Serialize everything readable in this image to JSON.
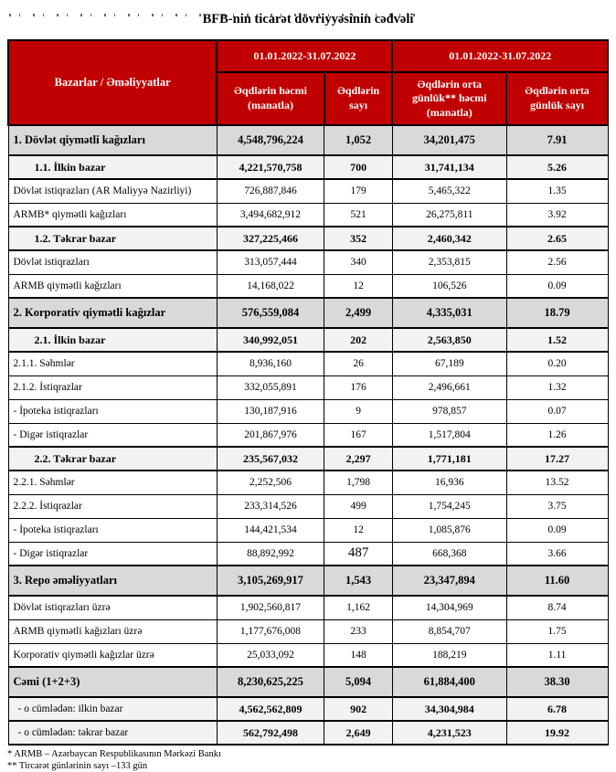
{
  "colors": {
    "header_red": "#C00000",
    "section_gray": "#D9D9D9",
    "subsection_gray": "#F2F2F2"
  },
  "page": {
    "title": "BFB-nin ticarət dövriyyəsinin cədvəli"
  },
  "table": {
    "corner_header": "Bazarlar / Əməliyyatlar",
    "period_headers": [
      "01.01.2022-31.07.2022",
      "01.01.2022-31.07.2022"
    ],
    "column_headers": [
      "Əqdlərin həcmi (manatla)",
      "Əqdlərin sayı",
      "Əqdlərin orta günlük** həcmi (manatla)",
      "Əqdlərin orta günlük sayı"
    ],
    "rows": [
      {
        "style": "section",
        "label": "1. Dövlət qiymətli kağızları",
        "values": [
          "4,548,796,224",
          "1,052",
          "34,201,475",
          "7.91"
        ]
      },
      {
        "style": "subsection",
        "label": "1.1. İlkin bazar",
        "values": [
          "4,221,570,758",
          "700",
          "31,741,134",
          "5.26"
        ]
      },
      {
        "style": "detail",
        "label": "Dövlət istiqrazları (AR Maliyyə Nazirliyi)",
        "values": [
          "726,887,846",
          "179",
          "5,465,322",
          "1.35"
        ]
      },
      {
        "style": "detail",
        "label": "ARMB* qiymətli kağızları",
        "values": [
          "3,494,682,912",
          "521",
          "26,275,811",
          "3.92"
        ]
      },
      {
        "style": "subsection",
        "label": "1.2. Təkrar bazar",
        "values": [
          "327,225,466",
          "352",
          "2,460,342",
          "2.65"
        ]
      },
      {
        "style": "detail",
        "label": "Dövlət istiqrazları",
        "values": [
          "313,057,444",
          "340",
          "2,353,815",
          "2.56"
        ]
      },
      {
        "style": "detail",
        "label": "ARMB qiymətli kağızları",
        "values": [
          "14,168,022",
          "12",
          "106,526",
          "0.09"
        ]
      },
      {
        "style": "section",
        "label": "2. Korporativ qiymətli kağızlar",
        "values": [
          "576,559,084",
          "2,499",
          "4,335,031",
          "18.79"
        ]
      },
      {
        "style": "subsection",
        "label": "2.1. İlkin bazar",
        "values": [
          "340,992,051",
          "202",
          "2,563,850",
          "1.52"
        ]
      },
      {
        "style": "detail",
        "label": "2.1.1. Səhmlər",
        "values": [
          "8,936,160",
          "26",
          "67,189",
          "0.20"
        ]
      },
      {
        "style": "detail",
        "label": "2.1.2. İstiqrazlar",
        "values": [
          "332,055,891",
          "176",
          "2,496,661",
          "1.32"
        ]
      },
      {
        "style": "detail",
        "label": " - İpoteka istiqrazları",
        "values": [
          "130,187,916",
          "9",
          "978,857",
          "0.07"
        ]
      },
      {
        "style": "detail",
        "label": " - Digər istiqrazlar",
        "values": [
          "201,867,976",
          "167",
          "1,517,804",
          "1.26"
        ]
      },
      {
        "style": "subsection",
        "label": "2.2. Təkrar bazar",
        "values": [
          "235,567,032",
          "2,297",
          "1,771,181",
          "17.27"
        ]
      },
      {
        "style": "detail",
        "label": "2.2.1. Səhmlər",
        "values": [
          "2,252,506",
          "1,798",
          "16,936",
          "13.52"
        ]
      },
      {
        "style": "detail",
        "label": "2.2.2. İstiqrazlar",
        "values": [
          "233,314,526",
          "499",
          "1,754,245",
          "3.75"
        ]
      },
      {
        "style": "detail",
        "label": " - İpoteka istiqrazları",
        "values": [
          "144,421,534",
          "12",
          "1,085,876",
          "0.09"
        ]
      },
      {
        "style": "detail",
        "label": " - Digər istiqrazlar",
        "values": [
          "88,892,992",
          "487",
          "668,368",
          "3.66"
        ],
        "large_count": true
      },
      {
        "style": "section",
        "label": "3. Repo əməliyyatları",
        "values": [
          "3,105,269,917",
          "1,543",
          "23,347,894",
          "11.60"
        ]
      },
      {
        "style": "detail",
        "label": "Dövlət istiqrazları üzrə",
        "values": [
          "1,902,560,817",
          "1,162",
          "14,304,969",
          "8.74"
        ]
      },
      {
        "style": "detail",
        "label": "ARMB qiymətli kağızları üzrə",
        "values": [
          "1,177,676,008",
          "233",
          "8,854,707",
          "1.75"
        ]
      },
      {
        "style": "detail",
        "label": "Korporativ qiymətli kağızlar üzrə",
        "values": [
          "25,033,092",
          "148",
          "188,219",
          "1.11"
        ]
      },
      {
        "style": "section",
        "label": "Cəmi (1+2+3)",
        "values": [
          "8,230,625,225",
          "5,094",
          "61,884,400",
          "38.30"
        ]
      },
      {
        "style": "totalsub",
        "label": " - o cümlədən: ilkin bazar",
        "values": [
          "4,562,562,809",
          "902",
          "34,304,984",
          "6.78"
        ]
      },
      {
        "style": "totalsub",
        "label": " - o cümlədən: təkrar bazar",
        "values": [
          "562,792,498",
          "2,649",
          "4,231,523",
          "19.92"
        ]
      }
    ]
  },
  "footnotes": [
    "* ARMB – Azərbaycan Respublikasının Mərkəzi Bankı",
    "** Tircarət günlərinin sayı –133 gün"
  ]
}
